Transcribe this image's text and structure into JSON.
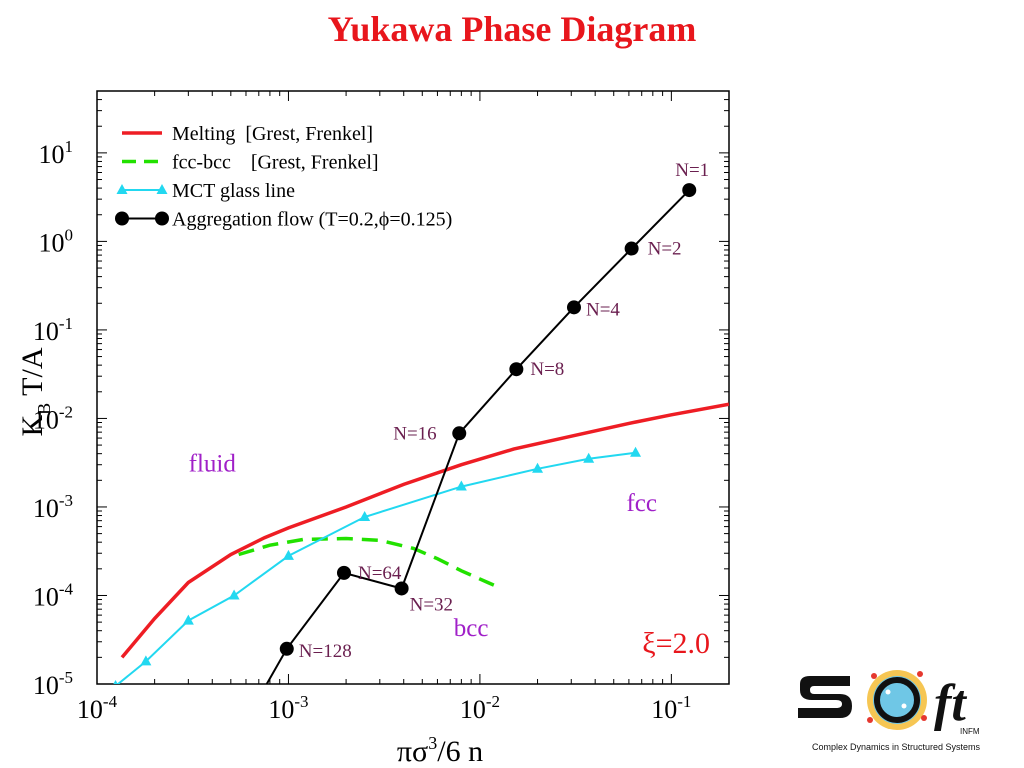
{
  "title": "Yukawa Phase Diagram",
  "chart_data": {
    "type": "line",
    "xscale": "log",
    "yscale": "log",
    "xlim": [
      0.0001,
      0.2
    ],
    "ylim": [
      1e-05,
      50
    ],
    "xlabel": "πσ³/6 n",
    "xlabel_parts": [
      "πσ",
      "3",
      "/6 n"
    ],
    "ylabel_parts": [
      "K",
      "B",
      " T/A"
    ],
    "x_ticks": [
      {
        "value": 0.0001,
        "base": "10",
        "exp": "-4"
      },
      {
        "value": 0.001,
        "base": "10",
        "exp": "-3"
      },
      {
        "value": 0.01,
        "base": "10",
        "exp": "-2"
      },
      {
        "value": 0.1,
        "base": "10",
        "exp": "-1"
      }
    ],
    "y_ticks": [
      {
        "value": 1e-05,
        "base": "10",
        "exp": "-5"
      },
      {
        "value": 0.0001,
        "base": "10",
        "exp": "-4"
      },
      {
        "value": 0.001,
        "base": "10",
        "exp": "-3"
      },
      {
        "value": 0.01,
        "base": "10",
        "exp": "-2"
      },
      {
        "value": 0.1,
        "base": "10",
        "exp": "-1"
      },
      {
        "value": 1,
        "base": "10",
        "exp": "0"
      },
      {
        "value": 10,
        "base": "10",
        "exp": "1"
      }
    ],
    "legend_position": "top-left",
    "series": [
      {
        "name": "Melting  [Grest, Frenkel]",
        "color": "#ee1d24",
        "style": "solid",
        "marker": "none",
        "x": [
          0.000135,
          0.0002,
          0.0003,
          0.0005,
          0.00075,
          0.001,
          0.002,
          0.004,
          0.008,
          0.015,
          0.03,
          0.06,
          0.1,
          0.2
        ],
        "y": [
          2e-05,
          5.5e-05,
          0.00014,
          0.00029,
          0.00045,
          0.00058,
          0.001,
          0.0018,
          0.003,
          0.0045,
          0.0063,
          0.0088,
          0.011,
          0.0145
        ]
      },
      {
        "name": "fcc-bcc    [Grest, Frenkel]",
        "color": "#22e100",
        "style": "dashed",
        "marker": "none",
        "x": [
          0.00055,
          0.0008,
          0.0012,
          0.002,
          0.003,
          0.0045,
          0.006,
          0.008,
          0.011,
          0.013
        ],
        "y": [
          0.00029,
          0.00037,
          0.00043,
          0.00044,
          0.00042,
          0.00034,
          0.00026,
          0.00019,
          0.00014,
          0.00012
        ]
      },
      {
        "name": "MCT glass line",
        "color": "#22d8f0",
        "style": "solid",
        "marker": "triangle",
        "x": [
          0.000125,
          0.00018,
          0.0003,
          0.00052,
          0.001,
          0.0025,
          0.008,
          0.02,
          0.037,
          0.065
        ],
        "y": [
          9.5e-06,
          1.8e-05,
          5.2e-05,
          0.0001,
          0.00028,
          0.00077,
          0.0017,
          0.0027,
          0.0035,
          0.0041
        ]
      },
      {
        "name": "Aggregation flow (T=0.2,ϕ=0.125)",
        "color": "#000000",
        "style": "solid",
        "marker": "circle",
        "x": [
          0.00076,
          0.00098,
          0.00195,
          0.0039,
          0.0078,
          0.0155,
          0.031,
          0.062,
          0.124
        ],
        "y": [
          9.5e-06,
          2.5e-05,
          0.00018,
          0.00012,
          0.0068,
          0.036,
          0.18,
          0.83,
          3.8
        ],
        "point_labels": [
          "",
          "N=128",
          "N=64",
          "N=32",
          "N=16",
          "N=8",
          "N=4",
          "N=2",
          "N=1"
        ]
      }
    ],
    "region_labels": [
      {
        "text": "fluid",
        "x": 0.0004,
        "y": 0.0025
      },
      {
        "text": "fcc",
        "x": 0.07,
        "y": 0.0009
      },
      {
        "text": "bcc",
        "x": 0.009,
        "y": 3.5e-05
      }
    ],
    "annotation": {
      "text": "ξ=2.0"
    }
  },
  "logo": {
    "wordmark": "SOFT",
    "sub": "INFM",
    "caption": "Complex Dynamics in Structured Systems"
  }
}
